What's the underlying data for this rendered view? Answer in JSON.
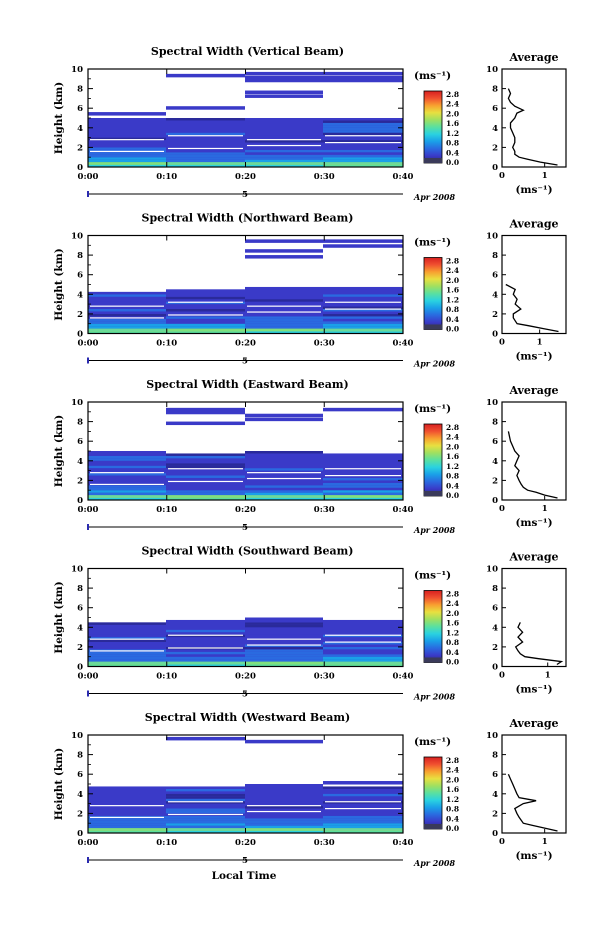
{
  "figure": {
    "footer_label": "Local Time",
    "date_label": "Apr 2008",
    "day_label": "5",
    "units_label": "(ms⁻¹)",
    "average_title": "Average",
    "average_xlabel": "(ms⁻¹)",
    "height_label": "Height (km)"
  },
  "colorbar": {
    "ticks": [
      "0.0",
      "0.4",
      "0.8",
      "1.2",
      "1.6",
      "2.0",
      "2.4",
      "2.8"
    ],
    "colors": [
      "#2a2a7a",
      "#3a3ac8",
      "#2a6ae0",
      "#1aa0e8",
      "#2ad2e0",
      "#5ae0a0",
      "#a0e060",
      "#e8e040",
      "#f8a030",
      "#f05030",
      "#d82020"
    ]
  },
  "chart_data": [
    {
      "type": "heatmap",
      "title": "Spectral Width (Vertical Beam)",
      "ylabel": "Height (km)",
      "xlabel": "Local Time",
      "x_ticks": [
        "0:00",
        "0:10",
        "0:20",
        "0:30",
        "0:40"
      ],
      "ylim": [
        0,
        10
      ],
      "y_ticks": [
        0,
        2,
        4,
        6,
        8,
        10
      ],
      "colorbar_range": [
        0.0,
        2.8
      ],
      "average": {
        "title": "Average",
        "xlabel": "(ms⁻¹)",
        "x_ticks": [
          0,
          1
        ],
        "xlim": [
          0,
          1.5
        ],
        "heights": [
          0.2,
          0.5,
          0.8,
          1.0,
          1.3,
          1.6,
          2.0,
          2.5,
          3.0,
          3.5,
          4.0,
          4.5,
          5.0,
          5.5,
          5.8,
          6.2,
          6.6,
          7.0,
          7.5,
          8.0
        ],
        "values": [
          1.3,
          0.9,
          0.6,
          0.4,
          0.3,
          0.3,
          0.25,
          0.3,
          0.3,
          0.25,
          0.2,
          0.2,
          0.3,
          0.35,
          0.5,
          0.3,
          0.2,
          0.15,
          0.2,
          0.15
        ]
      }
    },
    {
      "type": "heatmap",
      "title": "Spectral Width (Northward Beam)",
      "ylabel": "Height (km)",
      "xlabel": "Local Time",
      "x_ticks": [
        "0:00",
        "0:10",
        "0:20",
        "0:30",
        "0:40"
      ],
      "ylim": [
        0,
        10
      ],
      "y_ticks": [
        0,
        2,
        4,
        6,
        8,
        10
      ],
      "colorbar_range": [
        0.0,
        2.8
      ],
      "average": {
        "title": "Average",
        "xlabel": "(ms⁻¹)",
        "x_ticks": [
          0,
          1
        ],
        "xlim": [
          0,
          1.7
        ],
        "heights": [
          0.2,
          0.5,
          0.8,
          1.0,
          1.3,
          1.6,
          2.0,
          2.5,
          3.0,
          3.5,
          4.0,
          4.5,
          5.0
        ],
        "values": [
          1.5,
          1.1,
          0.7,
          0.4,
          0.35,
          0.3,
          0.3,
          0.5,
          0.35,
          0.4,
          0.3,
          0.35,
          0.1
        ]
      }
    },
    {
      "type": "heatmap",
      "title": "Spectral Width (Eastward Beam)",
      "ylabel": "Height (km)",
      "xlabel": "Local Time",
      "x_ticks": [
        "0:00",
        "0:10",
        "0:20",
        "0:30",
        "0:40"
      ],
      "ylim": [
        0,
        10
      ],
      "y_ticks": [
        0,
        2,
        4,
        6,
        8,
        10
      ],
      "colorbar_range": [
        0.0,
        2.8
      ],
      "average": {
        "title": "Average",
        "xlabel": "(ms⁻¹)",
        "x_ticks": [
          0,
          1
        ],
        "xlim": [
          0,
          1.5
        ],
        "heights": [
          0.2,
          0.5,
          0.8,
          1.0,
          1.3,
          1.6,
          2.0,
          2.5,
          3.0,
          3.5,
          4.0,
          4.5,
          5.0,
          5.5,
          6.0,
          7.0
        ],
        "values": [
          1.3,
          1.0,
          0.8,
          0.6,
          0.5,
          0.45,
          0.4,
          0.35,
          0.4,
          0.3,
          0.35,
          0.4,
          0.3,
          0.25,
          0.2,
          0.15
        ]
      }
    },
    {
      "type": "heatmap",
      "title": "Spectral Width (Southward Beam)",
      "ylabel": "Height (km)",
      "xlabel": "Local Time",
      "x_ticks": [
        "0:00",
        "0:10",
        "0:20",
        "0:30",
        "0:40"
      ],
      "ylim": [
        0,
        10
      ],
      "y_ticks": [
        0,
        2,
        4,
        6,
        8,
        10
      ],
      "colorbar_range": [
        0.0,
        2.8
      ],
      "average": {
        "title": "Average",
        "xlabel": "(ms⁻¹)",
        "x_ticks": [
          0,
          1
        ],
        "xlim": [
          0,
          1.4
        ],
        "heights": [
          0.2,
          0.5,
          0.8,
          1.0,
          1.3,
          1.6,
          2.0,
          2.5,
          3.0,
          3.5,
          4.0,
          4.5
        ],
        "values": [
          1.2,
          1.3,
          0.8,
          0.5,
          0.4,
          0.35,
          0.3,
          0.45,
          0.35,
          0.45,
          0.35,
          0.4
        ]
      }
    },
    {
      "type": "heatmap",
      "title": "Spectral Width (Westward Beam)",
      "ylabel": "Height (km)",
      "xlabel": "Local Time",
      "x_ticks": [
        "0:00",
        "0:10",
        "0:20",
        "0:30",
        "0:40"
      ],
      "ylim": [
        0,
        10
      ],
      "y_ticks": [
        0,
        2,
        4,
        6,
        8,
        10
      ],
      "colorbar_range": [
        0.0,
        2.8
      ],
      "average": {
        "title": "Average",
        "xlabel": "(ms⁻¹)",
        "x_ticks": [
          0,
          1
        ],
        "xlim": [
          0,
          1.5
        ],
        "heights": [
          0.2,
          0.5,
          0.8,
          1.0,
          1.3,
          1.6,
          2.0,
          2.5,
          3.0,
          3.3,
          3.6,
          4.0,
          4.5,
          5.0,
          5.5,
          6.0
        ],
        "values": [
          1.3,
          1.0,
          0.7,
          0.5,
          0.45,
          0.4,
          0.35,
          0.3,
          0.5,
          0.8,
          0.4,
          0.35,
          0.3,
          0.25,
          0.2,
          0.15
        ]
      }
    }
  ]
}
